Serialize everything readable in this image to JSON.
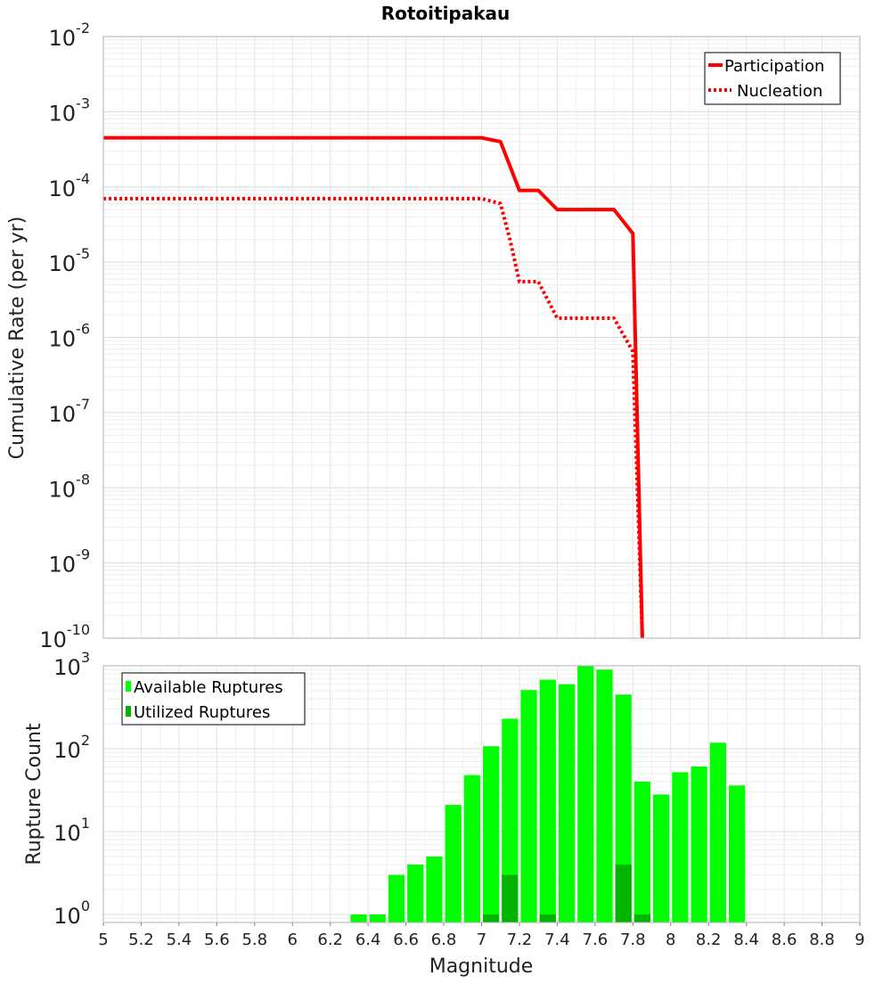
{
  "chart_data": [
    {
      "type": "line",
      "title": "Rotoitipakau",
      "xlabel": "",
      "ylabel": "Cumulative Rate (per yr)",
      "xlim": [
        5,
        9
      ],
      "ylim": [
        1e-10,
        0.01
      ],
      "yscale": "log",
      "grid": true,
      "legend_position": "top-right",
      "series": [
        {
          "name": "Participation",
          "style": "solid",
          "color": "#ff0000",
          "x": [
            5.0,
            7.0,
            7.1,
            7.2,
            7.3,
            7.4,
            7.5,
            7.6,
            7.7,
            7.8,
            7.85
          ],
          "y": [
            0.00045,
            0.00045,
            0.0004,
            9e-05,
            9e-05,
            5e-05,
            5e-05,
            5e-05,
            5e-05,
            2.4e-05,
            1e-10
          ]
        },
        {
          "name": "Nucleation",
          "style": "dotted",
          "color": "#ff0000",
          "x": [
            5.0,
            7.0,
            7.1,
            7.15,
            7.2,
            7.3,
            7.4,
            7.5,
            7.6,
            7.7,
            7.8,
            7.85
          ],
          "y": [
            7e-05,
            7e-05,
            6e-05,
            2e-05,
            5.5e-06,
            5.5e-06,
            1.8e-06,
            1.8e-06,
            1.8e-06,
            1.8e-06,
            6.5e-07,
            1e-10
          ]
        }
      ],
      "yticks": [
        {
          "base": "10",
          "exp": "-2"
        },
        {
          "base": "10",
          "exp": "-3"
        },
        {
          "base": "10",
          "exp": "-4"
        },
        {
          "base": "10",
          "exp": "-5"
        },
        {
          "base": "10",
          "exp": "-6"
        },
        {
          "base": "10",
          "exp": "-7"
        },
        {
          "base": "10",
          "exp": "-8"
        },
        {
          "base": "10",
          "exp": "-9"
        },
        {
          "base": "10",
          "exp": "-10"
        }
      ]
    },
    {
      "type": "bar",
      "title": "",
      "xlabel": "Magnitude",
      "ylabel": "Rupture Count",
      "xlim": [
        5,
        9
      ],
      "ylim": [
        0.8,
        1000
      ],
      "yscale": "log",
      "grid": true,
      "legend_position": "top-left",
      "bin_width": 0.1,
      "bin_starts": [
        6.3,
        6.4,
        6.5,
        6.6,
        6.7,
        6.8,
        6.9,
        7.0,
        7.1,
        7.2,
        7.3,
        7.4,
        7.5,
        7.6,
        7.7,
        7.8,
        7.9,
        8.0,
        8.1,
        8.2,
        8.3
      ],
      "series": [
        {
          "name": "Available Ruptures",
          "color": "#00ff00",
          "values": [
            1,
            1,
            3,
            4,
            5,
            21,
            48,
            107,
            230,
            510,
            680,
            600,
            1000,
            900,
            450,
            40,
            28,
            52,
            61,
            118,
            36
          ]
        },
        {
          "name": "Utilized Ruptures",
          "color": "#00b400",
          "values": [
            0,
            0,
            0,
            0,
            0,
            0,
            0,
            1,
            3,
            0,
            1,
            0,
            0,
            0,
            4,
            1,
            0,
            0,
            0,
            0,
            0
          ]
        }
      ],
      "yticks": [
        {
          "base": "10",
          "exp": "3"
        },
        {
          "base": "10",
          "exp": "2"
        },
        {
          "base": "10",
          "exp": "1"
        },
        {
          "base": "10",
          "exp": "0"
        }
      ],
      "xticks": [
        "5",
        "5.2",
        "5.4",
        "5.6",
        "5.8",
        "6",
        "6.2",
        "6.4",
        "6.6",
        "6.8",
        "7",
        "7.2",
        "7.4",
        "7.6",
        "7.8",
        "8",
        "8.2",
        "8.4",
        "8.6",
        "8.8",
        "9"
      ]
    }
  ]
}
